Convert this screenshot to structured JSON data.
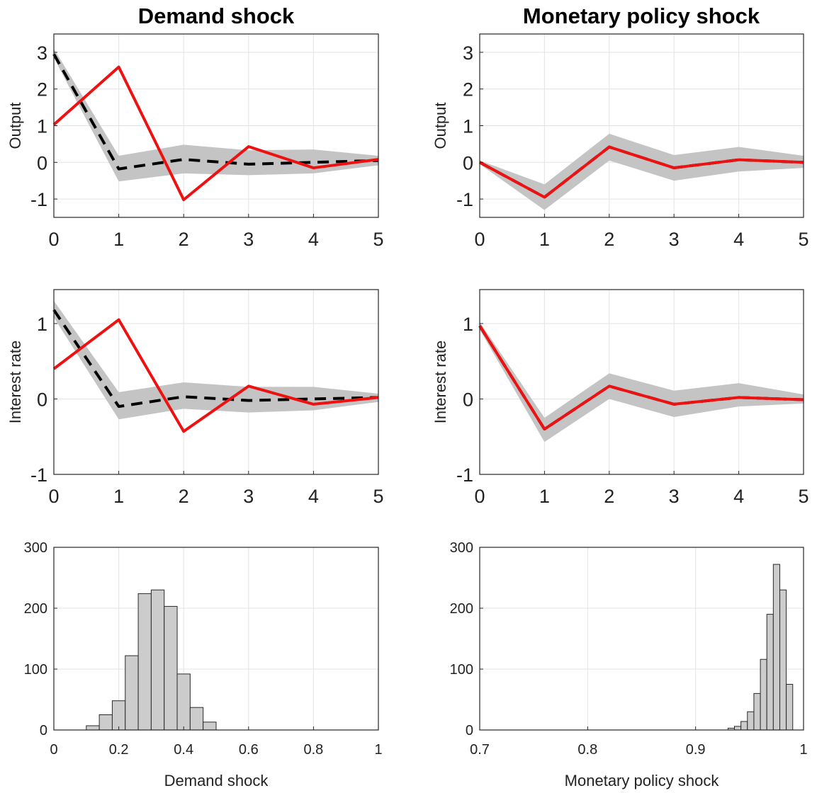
{
  "columns": [
    {
      "title": "Demand shock"
    },
    {
      "title": "Monetary policy  shock"
    }
  ],
  "chart_data": [
    {
      "type": "line",
      "panel": "demand-output",
      "title": "Demand shock",
      "ylabel": "Output",
      "xlabel": "",
      "x": [
        0,
        1,
        2,
        3,
        4,
        5
      ],
      "xlim": [
        0,
        5
      ],
      "ylim": [
        -1.5,
        3.5
      ],
      "xticks": [
        0,
        1,
        2,
        3,
        4,
        5
      ],
      "yticks": [
        -1,
        0,
        1,
        2,
        3
      ],
      "grid": true,
      "band": {
        "lower": [
          2.85,
          -0.52,
          -0.3,
          -0.35,
          -0.3,
          -0.08
        ],
        "upper": [
          3.1,
          0.18,
          0.48,
          0.33,
          0.35,
          0.18
        ]
      },
      "series": [
        {
          "values": [
            2.95,
            -0.18,
            0.08,
            -0.05,
            0.0,
            0.05
          ],
          "color": "#000000",
          "style": "dashed"
        },
        {
          "values": [
            1.03,
            2.6,
            -1.02,
            0.43,
            -0.15,
            0.08
          ],
          "color": "#ee1111",
          "style": "solid"
        }
      ]
    },
    {
      "type": "line",
      "panel": "monetary-output",
      "title": "Monetary policy  shock",
      "ylabel": "Output",
      "xlabel": "",
      "x": [
        0,
        1,
        2,
        3,
        4,
        5
      ],
      "xlim": [
        0,
        5
      ],
      "ylim": [
        -1.5,
        3.5
      ],
      "xticks": [
        0,
        1,
        2,
        3,
        4,
        5
      ],
      "yticks": [
        -1,
        0,
        1,
        2,
        3
      ],
      "grid": true,
      "band": {
        "lower": [
          -0.05,
          -1.3,
          0.05,
          -0.5,
          -0.25,
          -0.15
        ],
        "upper": [
          0.05,
          -0.6,
          0.78,
          0.2,
          0.42,
          0.18
        ]
      },
      "series": [
        {
          "values": [
            0.0,
            -0.95,
            0.42,
            -0.15,
            0.07,
            0.0
          ],
          "color": "#000000",
          "style": "dashed"
        },
        {
          "values": [
            0.0,
            -0.95,
            0.42,
            -0.15,
            0.07,
            0.0
          ],
          "color": "#ee1111",
          "style": "solid"
        }
      ]
    },
    {
      "type": "line",
      "panel": "demand-rate",
      "title": "",
      "ylabel": "Interest rate",
      "xlabel": "",
      "x": [
        0,
        1,
        2,
        3,
        4,
        5
      ],
      "xlim": [
        0,
        5
      ],
      "ylim": [
        -1,
        1.45
      ],
      "xticks": [
        0,
        1,
        2,
        3,
        4,
        5
      ],
      "yticks": [
        -1,
        0,
        1
      ],
      "grid": true,
      "band": {
        "lower": [
          1.08,
          -0.27,
          -0.13,
          -0.18,
          -0.15,
          -0.04
        ],
        "upper": [
          1.3,
          0.09,
          0.22,
          0.16,
          0.16,
          0.07
        ]
      },
      "series": [
        {
          "values": [
            1.18,
            -0.1,
            0.03,
            -0.02,
            0.0,
            0.02
          ],
          "color": "#000000",
          "style": "dashed"
        },
        {
          "values": [
            0.4,
            1.05,
            -0.43,
            0.17,
            -0.07,
            0.02
          ],
          "color": "#ee1111",
          "style": "solid"
        }
      ]
    },
    {
      "type": "line",
      "panel": "monetary-rate",
      "title": "",
      "ylabel": "Interest rate",
      "xlabel": "",
      "x": [
        0,
        1,
        2,
        3,
        4,
        5
      ],
      "xlim": [
        0,
        5
      ],
      "ylim": [
        -1,
        1.45
      ],
      "xticks": [
        0,
        1,
        2,
        3,
        4,
        5
      ],
      "yticks": [
        -1,
        0,
        1
      ],
      "grid": true,
      "band": {
        "lower": [
          0.92,
          -0.57,
          0.0,
          -0.24,
          -0.1,
          -0.06
        ],
        "upper": [
          1.02,
          -0.25,
          0.34,
          0.11,
          0.21,
          0.06
        ]
      },
      "series": [
        {
          "values": [
            0.97,
            -0.4,
            0.17,
            -0.07,
            0.02,
            -0.01
          ],
          "color": "#000000",
          "style": "dashed"
        },
        {
          "values": [
            0.97,
            -0.4,
            0.17,
            -0.07,
            0.02,
            -0.01
          ],
          "color": "#ee1111",
          "style": "solid"
        }
      ]
    },
    {
      "type": "bar",
      "panel": "demand-hist",
      "title": "",
      "ylabel": "",
      "xlabel": "Demand shock",
      "xlim": [
        0,
        1
      ],
      "ylim": [
        0,
        300
      ],
      "xticks": [
        0,
        0.2,
        0.4,
        0.6,
        0.8,
        1
      ],
      "xticklabels": [
        "0",
        "0.2",
        "0.4",
        "0.6",
        "0.8",
        "1"
      ],
      "yticks": [
        0,
        100,
        200,
        300
      ],
      "grid": true,
      "bin_width": 0.04,
      "bins": [
        0.1,
        0.14,
        0.18,
        0.22,
        0.26,
        0.3,
        0.34,
        0.38,
        0.42,
        0.46,
        0.5
      ],
      "values": [
        7,
        25,
        48,
        122,
        224,
        230,
        203,
        92,
        37,
        13,
        0
      ]
    },
    {
      "type": "bar",
      "panel": "monetary-hist",
      "title": "",
      "ylabel": "",
      "xlabel": "Monetary policy  shock",
      "xlim": [
        0.7,
        1
      ],
      "ylim": [
        0,
        300
      ],
      "xticks": [
        0.7,
        0.8,
        0.9,
        1
      ],
      "xticklabels": [
        "0.7",
        "0.8",
        "0.9",
        "1"
      ],
      "yticks": [
        0,
        100,
        200,
        300
      ],
      "grid": true,
      "bin_width": 0.006,
      "bins": [
        0.93,
        0.936,
        0.942,
        0.948,
        0.954,
        0.96,
        0.966,
        0.972,
        0.978,
        0.984,
        0.99
      ],
      "values": [
        3,
        6,
        14,
        30,
        60,
        116,
        190,
        272,
        230,
        75,
        0
      ]
    }
  ]
}
